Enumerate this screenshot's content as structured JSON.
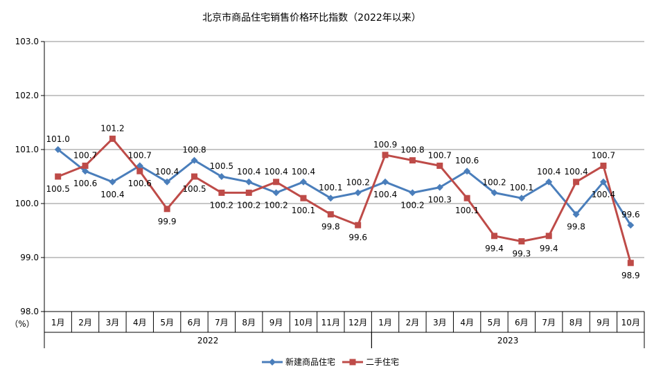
{
  "chart_data": {
    "type": "line",
    "title": "北京市商品住宅销售价格环比指数（2022年以来）",
    "y_unit_label": "（%）",
    "ylim": [
      98.0,
      103.0
    ],
    "y_ticks": [
      "98.0",
      "99.0",
      "100.0",
      "101.0",
      "102.0",
      "103.0"
    ],
    "grid": "horizontal",
    "legend_position": "bottom-center",
    "categories": [
      "1月",
      "2月",
      "3月",
      "4月",
      "5月",
      "6月",
      "7月",
      "8月",
      "9月",
      "10月",
      "11月",
      "12月",
      "1月",
      "2月",
      "3月",
      "4月",
      "5月",
      "6月",
      "7月",
      "8月",
      "9月",
      "10月"
    ],
    "year_groups": [
      {
        "label": "2022",
        "count": 12
      },
      {
        "label": "2023",
        "count": 10
      }
    ],
    "series": [
      {
        "name": "新建商品住宅",
        "color": "#4a7ebb",
        "marker": "diamond",
        "values": [
          101.0,
          100.6,
          100.4,
          100.7,
          100.4,
          100.8,
          100.5,
          100.4,
          100.2,
          100.4,
          100.1,
          100.2,
          100.4,
          100.2,
          100.3,
          100.6,
          100.2,
          100.1,
          100.4,
          99.8,
          100.4,
          99.6
        ],
        "labels": [
          "101.0",
          "100.6",
          "100.4",
          "100.7",
          "100.4",
          "100.8",
          "100.5",
          "100.4",
          "100.2",
          "100.4",
          "100.1",
          "100.2",
          "100.4",
          "100.2",
          "100.3",
          "100.6",
          "100.2",
          "100.1",
          "100.4",
          "99.8",
          "100.4",
          "99.6"
        ]
      },
      {
        "name": "二手住宅",
        "color": "#be4b48",
        "marker": "square",
        "values": [
          100.5,
          100.7,
          101.2,
          100.6,
          99.9,
          100.5,
          100.2,
          100.2,
          100.4,
          100.1,
          99.8,
          99.6,
          100.9,
          100.8,
          100.7,
          100.1,
          99.4,
          99.3,
          99.4,
          100.4,
          100.7,
          98.9
        ],
        "labels": [
          "100.5",
          "100.7",
          "101.2",
          "100.6",
          "99.9",
          "100.5",
          "100.2",
          "100.2",
          "100.4",
          "100.1",
          "99.8",
          "99.6",
          "100.9",
          "100.8",
          "100.7",
          "100.1",
          "99.4",
          "99.3",
          "99.4",
          "100.4",
          "100.7",
          "98.9"
        ]
      }
    ]
  }
}
